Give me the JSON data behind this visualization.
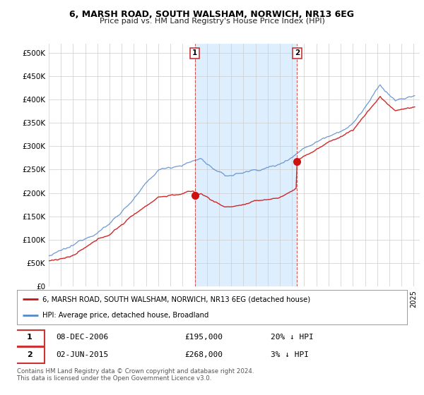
{
  "title": "6, MARSH ROAD, SOUTH WALSHAM, NORWICH, NR13 6EG",
  "subtitle": "Price paid vs. HM Land Registry's House Price Index (HPI)",
  "ylabel_ticks": [
    "£0",
    "£50K",
    "£100K",
    "£150K",
    "£200K",
    "£250K",
    "£300K",
    "£350K",
    "£400K",
    "£450K",
    "£500K"
  ],
  "ytick_values": [
    0,
    50000,
    100000,
    150000,
    200000,
    250000,
    300000,
    350000,
    400000,
    450000,
    500000
  ],
  "ylim": [
    0,
    520000
  ],
  "hpi_color": "#5588cc",
  "property_color": "#cc1111",
  "sale1_price": 195000,
  "sale2_price": 268000,
  "sale1_date": "08-DEC-2006",
  "sale2_date": "02-JUN-2015",
  "sale1_label": "20% ↓ HPI",
  "sale2_label": "3% ↓ HPI",
  "legend_property": "6, MARSH ROAD, SOUTH WALSHAM, NORWICH, NR13 6EG (detached house)",
  "legend_hpi": "HPI: Average price, detached house, Broadland",
  "footnote": "Contains HM Land Registry data © Crown copyright and database right 2024.\nThis data is licensed under the Open Government Licence v3.0.",
  "vline1_x": 2007.0,
  "vline2_x": 2015.42,
  "shade_color": "#ddeeff",
  "xmin": 1995,
  "xmax": 2025.5
}
